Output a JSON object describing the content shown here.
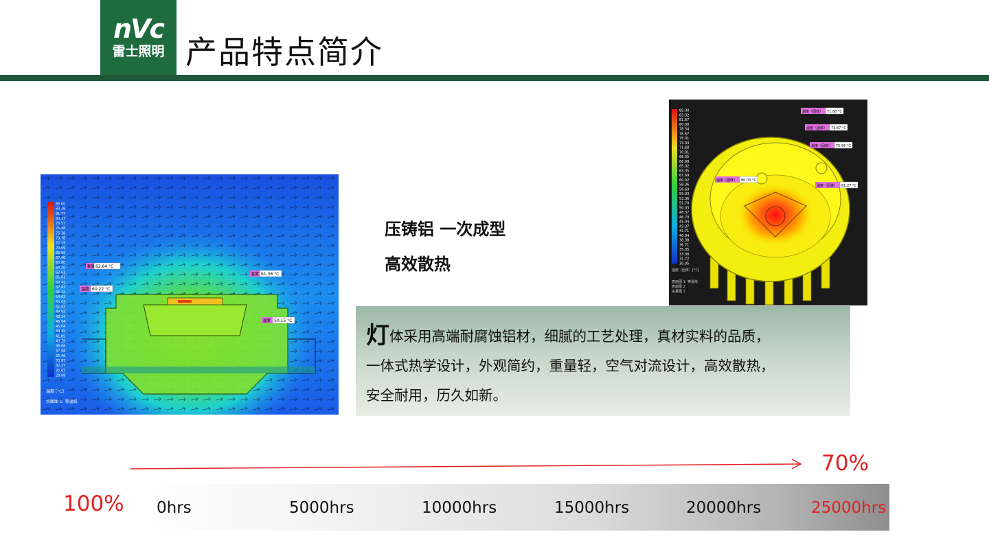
{
  "header": {
    "logo_text": "nVc",
    "logo_cn": "雷士照明",
    "title": "产品特点简介",
    "brand_color": "#1e6b3e"
  },
  "left_image": {
    "legend_values": [
      "85.00",
      "83.36",
      "81.77",
      "80.17",
      "78.57",
      "76.98",
      "75.38",
      "73.78",
      "72.19",
      "70.59",
      "68.99",
      "67.40",
      "65.80",
      "64.20",
      "62.61",
      "61.01",
      "59.41",
      "57.82",
      "56.22",
      "54.62",
      "53.03",
      "51.43",
      "49.83",
      "48.24",
      "46.64",
      "45.04",
      "43.45",
      "41.85",
      "40.25",
      "38.66",
      "37.06",
      "35.46",
      "33.87",
      "32.27",
      "30.67",
      "29.08"
    ],
    "unit_label": "温度 [°C]",
    "footer_label": "切面图 1: 等温线",
    "probes": [
      {
        "label": "温度",
        "value": "62.84 °C"
      },
      {
        "label": "温度",
        "value": "60.22 °C"
      },
      {
        "label": "温度",
        "value": "61.38 °C"
      },
      {
        "label": "温度",
        "value": "50.15 °C"
      }
    ]
  },
  "right_image": {
    "legend_values": [
      "85.00",
      "83.32",
      "81.67",
      "80.00",
      "78.34",
      "76.67",
      "75.01",
      "73.34",
      "71.68",
      "70.01",
      "68.35",
      "66.68",
      "65.02",
      "63.35",
      "61.69",
      "60.02",
      "58.36",
      "56.69",
      "55.03",
      "53.36",
      "51.70",
      "50.03",
      "48.37",
      "46.70",
      "45.04",
      "43.37",
      "41.71",
      "40.04",
      "38.38",
      "36.71",
      "35.05",
      "33.38",
      "31.72",
      "30.05"
    ],
    "unit_label": "温度（固体）[°C]",
    "footer_lines": [
      "表面图 1: 等温线",
      "表面图 2",
      "矢量图 1"
    ],
    "probes": [
      {
        "label": "温度（固体）",
        "value": "71.88 °C"
      },
      {
        "label": "温度（固体）",
        "value": "73.87 °C"
      },
      {
        "label": "温度（固体）",
        "value": "75.56 °C"
      },
      {
        "label": "温度（固体）",
        "value": "80.03 °C"
      },
      {
        "label": "温度（固体）",
        "value": "81.27 °C"
      }
    ]
  },
  "features": {
    "line1": "压铸铝 一次成型",
    "line2": "高效散热"
  },
  "description": {
    "first_char": "灯",
    "line1_rest": "体采用高端耐腐蚀铝材，细腻的工艺处理，真材实料的品质，",
    "line2": "一体式热学设计，外观简约，重量轻，空气对流设计，高效散热，",
    "line3": "安全耐用，历久如新。"
  },
  "timeline": {
    "start_percent": "100%",
    "end_percent": "70%",
    "accent_color": "#e02020",
    "ticks": [
      "0hrs",
      "5000hrs",
      "10000hrs",
      "15000hrs",
      "20000hrs",
      "25000hrs"
    ]
  }
}
